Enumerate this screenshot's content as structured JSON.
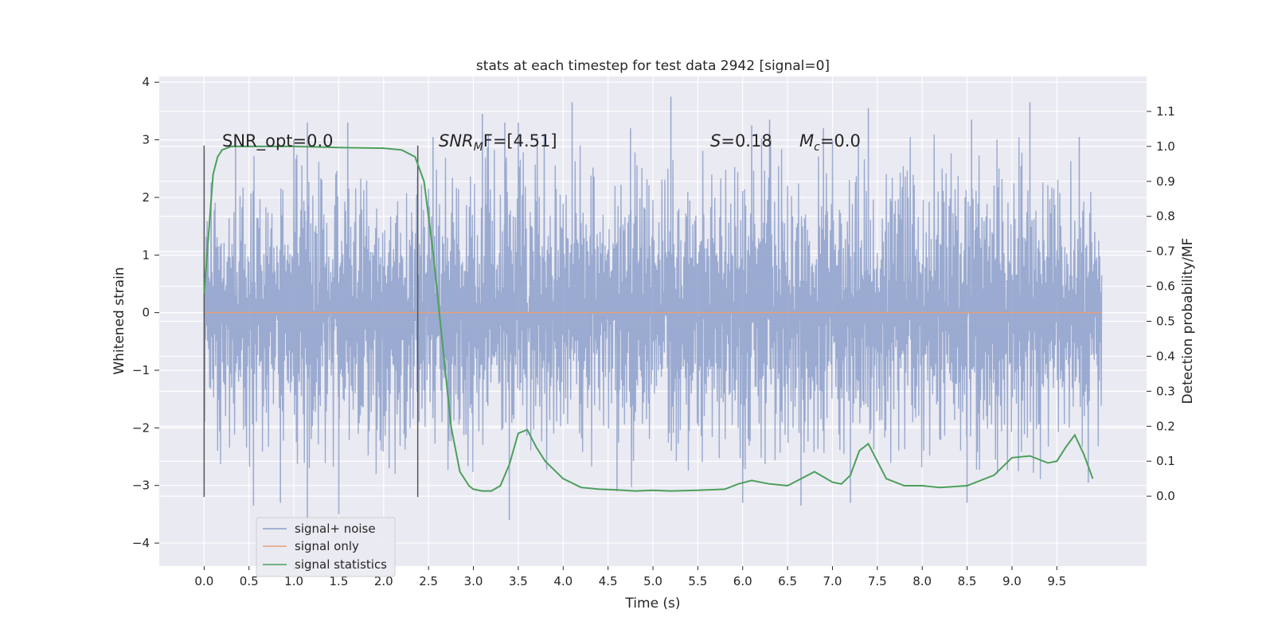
{
  "chart_data": {
    "type": "line",
    "title": "stats at each timestep for test data 2942 [signal=0]",
    "xlabel": "Time (s)",
    "ylabel": "Whitened strain",
    "ylabel_right": "Detection probability/MF",
    "xlim": [
      -0.5,
      10.5
    ],
    "ylim": [
      -4.4,
      4.1
    ],
    "ylim_right": [
      -0.2,
      1.2
    ],
    "xticks": [
      "0.0",
      "0.5",
      "1.0",
      "1.5",
      "2.0",
      "2.5",
      "3.0",
      "3.5",
      "4.0",
      "4.5",
      "5.0",
      "5.5",
      "6.0",
      "6.5",
      "7.0",
      "7.5",
      "8.0",
      "8.5",
      "9.0",
      "9.5"
    ],
    "yticks_left": [
      "4",
      "3",
      "2",
      "1",
      "0",
      "−1",
      "−2",
      "−3",
      "−4"
    ],
    "yticks_right": [
      "1.1",
      "1.0",
      "0.9",
      "0.8",
      "0.7",
      "0.6",
      "0.5",
      "0.4",
      "0.3",
      "0.2",
      "0.1",
      "0.0"
    ],
    "grid": true,
    "legend_position": "lower-left",
    "annotations": {
      "snr_opt": "SNR_opt=0.0",
      "snr_mf_base": "SNR",
      "snr_mf_sub": "M",
      "snr_mf_rest": "F=[4.51]",
      "s_label": "S",
      "s_value": "=0.18",
      "mc_base": "M",
      "mc_sub": "c",
      "mc_value": "=0.0"
    },
    "vertical_markers": [
      {
        "x": 0.0,
        "y_range": [
          -3.2,
          2.9
        ]
      },
      {
        "x": 2.38,
        "y_range": [
          -3.2,
          2.9
        ]
      }
    ],
    "series": [
      {
        "name": "signal+ noise",
        "color": "#8da0cb",
        "x_range": [
          0.0,
          10.0
        ],
        "envelope_upper": [
          [
            0,
            2.4
          ],
          [
            0.5,
            2.5
          ],
          [
            1.0,
            2.7
          ],
          [
            1.5,
            2.6
          ],
          [
            2.0,
            2.5
          ],
          [
            2.5,
            2.6
          ],
          [
            3.0,
            2.8
          ],
          [
            3.5,
            2.9
          ],
          [
            4.0,
            2.7
          ],
          [
            4.5,
            2.6
          ],
          [
            5.0,
            2.8
          ],
          [
            5.5,
            2.7
          ],
          [
            6.0,
            2.8
          ],
          [
            6.5,
            2.6
          ],
          [
            7.0,
            2.8
          ],
          [
            7.5,
            2.7
          ],
          [
            8.0,
            2.8
          ],
          [
            8.5,
            2.9
          ],
          [
            9.0,
            2.7
          ],
          [
            9.5,
            2.8
          ],
          [
            10.0,
            2.2
          ]
        ],
        "envelope_lower": [
          [
            0,
            -2.2
          ],
          [
            0.5,
            -2.6
          ],
          [
            1.0,
            -2.7
          ],
          [
            1.5,
            -2.5
          ],
          [
            2.0,
            -2.6
          ],
          [
            2.5,
            -2.7
          ],
          [
            3.0,
            -2.6
          ],
          [
            3.5,
            -2.8
          ],
          [
            4.0,
            -2.7
          ],
          [
            4.5,
            -2.6
          ],
          [
            5.0,
            -2.7
          ],
          [
            5.5,
            -2.6
          ],
          [
            6.0,
            -2.8
          ],
          [
            6.5,
            -2.7
          ],
          [
            7.0,
            -2.8
          ],
          [
            7.5,
            -2.6
          ],
          [
            8.0,
            -2.7
          ],
          [
            8.5,
            -2.8
          ],
          [
            9.0,
            -2.7
          ],
          [
            9.5,
            -2.6
          ],
          [
            10.0,
            -2.2
          ]
        ],
        "peaks": [
          [
            0.35,
            2.9
          ],
          [
            1.0,
            3.0
          ],
          [
            1.15,
            3.3
          ],
          [
            1.6,
            3.3
          ],
          [
            2.55,
            3.05
          ],
          [
            3.1,
            3.45
          ],
          [
            3.35,
            3.3
          ],
          [
            3.5,
            3.3
          ],
          [
            4.1,
            3.65
          ],
          [
            4.75,
            3.2
          ],
          [
            5.2,
            3.75
          ],
          [
            6.1,
            3.25
          ],
          [
            6.3,
            3.35
          ],
          [
            6.9,
            3.2
          ],
          [
            7.4,
            3.55
          ],
          [
            8.55,
            3.35
          ],
          [
            9.2,
            3.65
          ],
          [
            9.75,
            3.05
          ]
        ],
        "troughs": [
          [
            0.55,
            -3.35
          ],
          [
            0.85,
            -3.3
          ],
          [
            1.15,
            -3.75
          ],
          [
            1.5,
            -3.5
          ],
          [
            3.4,
            -3.6
          ],
          [
            4.6,
            -3.1
          ],
          [
            6.0,
            -3.3
          ],
          [
            6.65,
            -3.35
          ],
          [
            7.2,
            -3.3
          ],
          [
            8.5,
            -3.3
          ],
          [
            9.85,
            -2.95
          ]
        ]
      },
      {
        "name": "signal only",
        "color": "#e5a07d",
        "x": [
          0.0,
          10.0
        ],
        "y": [
          0.0,
          0.0
        ]
      },
      {
        "name": "signal statistics",
        "color": "#4c9f5c",
        "axis": "right",
        "x": [
          0.0,
          0.1,
          0.15,
          0.2,
          0.3,
          0.5,
          1.0,
          1.5,
          2.0,
          2.2,
          2.35,
          2.45,
          2.55,
          2.65,
          2.75,
          2.85,
          2.95,
          3.0,
          3.1,
          3.2,
          3.3,
          3.4,
          3.5,
          3.6,
          3.7,
          3.8,
          4.0,
          4.2,
          4.4,
          4.6,
          4.8,
          5.0,
          5.2,
          5.5,
          5.8,
          5.95,
          6.1,
          6.3,
          6.5,
          6.65,
          6.8,
          6.9,
          7.0,
          7.1,
          7.2,
          7.3,
          7.4,
          7.5,
          7.6,
          7.8,
          8.0,
          8.2,
          8.5,
          8.8,
          9.0,
          9.2,
          9.4,
          9.5,
          9.6,
          9.7,
          9.8,
          9.9
        ],
        "y": [
          0.58,
          0.92,
          0.97,
          0.99,
          1.0,
          1.0,
          1.0,
          0.997,
          0.995,
          0.99,
          0.97,
          0.9,
          0.7,
          0.45,
          0.2,
          0.07,
          0.03,
          0.02,
          0.015,
          0.015,
          0.03,
          0.09,
          0.18,
          0.19,
          0.14,
          0.1,
          0.05,
          0.025,
          0.02,
          0.018,
          0.015,
          0.017,
          0.015,
          0.017,
          0.02,
          0.035,
          0.045,
          0.035,
          0.03,
          0.05,
          0.07,
          0.055,
          0.04,
          0.035,
          0.06,
          0.13,
          0.15,
          0.1,
          0.05,
          0.03,
          0.03,
          0.025,
          0.03,
          0.06,
          0.11,
          0.115,
          0.095,
          0.1,
          0.14,
          0.175,
          0.12,
          0.05
        ]
      }
    ]
  }
}
